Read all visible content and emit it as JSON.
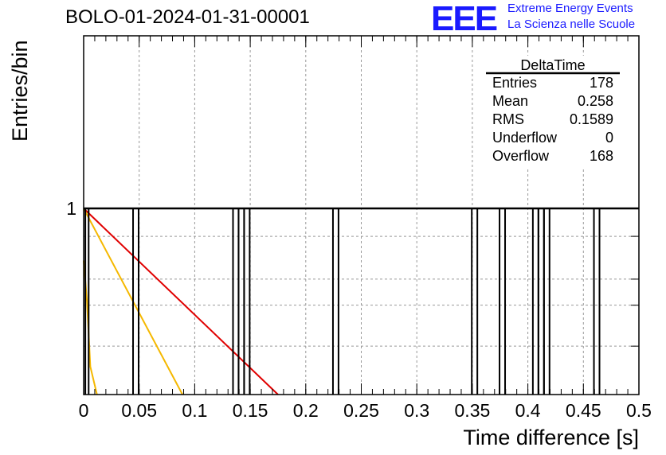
{
  "header": {
    "run_title": "BOLO-01-2024-01-31-00001",
    "logo_text": "EEE",
    "org_line1": "Extreme Energy Events",
    "org_line2": "La Scienza nelle Scuole",
    "logo_color": "#1a1aff"
  },
  "stats_box": {
    "title": "DeltaTime",
    "rows": [
      {
        "label": "Entries",
        "value": "178"
      },
      {
        "label": "Mean",
        "value": "0.258"
      },
      {
        "label": "RMS",
        "value": "0.1589"
      },
      {
        "label": "Underflow",
        "value": "0"
      },
      {
        "label": "Overflow",
        "value": "168"
      }
    ]
  },
  "chart_data": {
    "type": "histogram",
    "xlabel": "Time difference [s]",
    "ylabel": "Entries/bin",
    "xlim": [
      0,
      0.5
    ],
    "y_scale": "log",
    "x_ticks": [
      "0",
      "0.05",
      "0.1",
      "0.15",
      "0.2",
      "0.25",
      "0.3",
      "0.35",
      "0.4",
      "0.45",
      "0.5"
    ],
    "y_ticks": [
      "1"
    ],
    "grid": true,
    "bin_width": 0.005,
    "bins": [
      {
        "x0": 0.0015,
        "x1": 0.0045,
        "count": 1
      },
      {
        "x0": 0.0445,
        "x1": 0.0495,
        "count": 1
      },
      {
        "x0": 0.1345,
        "x1": 0.1395,
        "count": 1
      },
      {
        "x0": 0.1395,
        "x1": 0.1445,
        "count": 1
      },
      {
        "x0": 0.1445,
        "x1": 0.1495,
        "count": 1
      },
      {
        "x0": 0.2245,
        "x1": 0.2295,
        "count": 1
      },
      {
        "x0": 0.3495,
        "x1": 0.3545,
        "count": 1
      },
      {
        "x0": 0.3745,
        "x1": 0.3795,
        "count": 1
      },
      {
        "x0": 0.4045,
        "x1": 0.4095,
        "count": 1
      },
      {
        "x0": 0.4095,
        "x1": 0.4145,
        "count": 1
      },
      {
        "x0": 0.4145,
        "x1": 0.4195,
        "count": 1
      },
      {
        "x0": 0.4595,
        "x1": 0.4645,
        "count": 1
      }
    ],
    "fit_curves": [
      {
        "color": "#e00000",
        "points": [
          [
            0.0,
            1.0
          ],
          [
            0.175,
            0.0
          ]
        ]
      },
      {
        "color": "#f5b800",
        "points": [
          [
            0.0,
            1.0
          ],
          [
            0.089,
            0.0
          ]
        ]
      },
      {
        "color": "#f5b800",
        "points": [
          [
            0.0,
            0.72
          ],
          [
            0.003,
            0.5
          ],
          [
            0.006,
            0.15
          ],
          [
            0.012,
            0.0
          ]
        ]
      }
    ]
  }
}
